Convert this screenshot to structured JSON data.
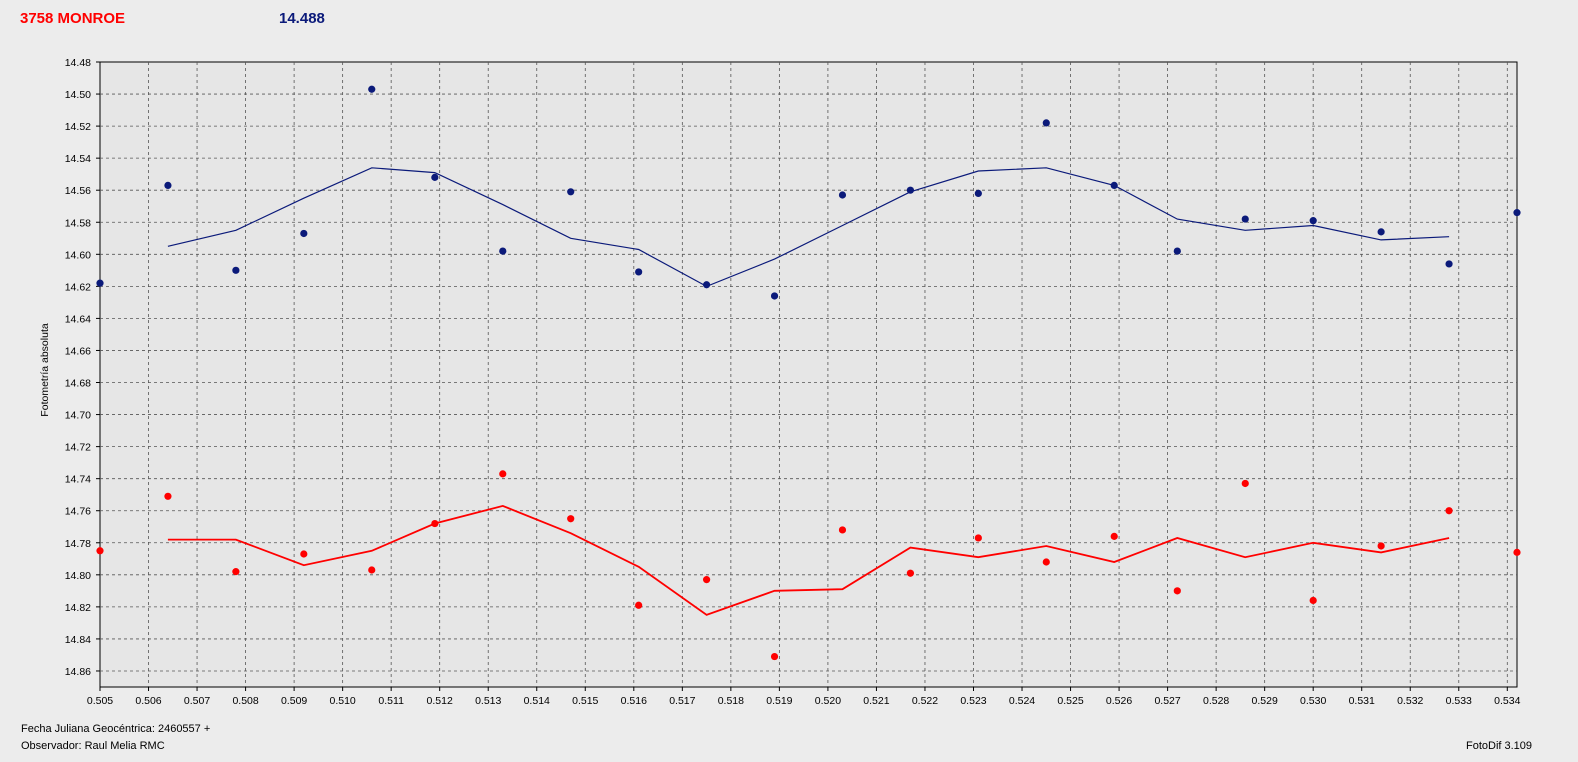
{
  "header": {
    "object_name": "3758 MONROE",
    "reference_value": "14.488"
  },
  "footer": {
    "fecha": "Fecha Juliana Geocéntrica: 2460557 +",
    "observer": "Observador: Raul Melia RMC",
    "version": "FotoDif 3.109"
  },
  "chart_data": {
    "type": "scatter",
    "title": "",
    "xlabel": "",
    "ylabel": "Fotometría absoluta",
    "xlim": [
      0.505,
      0.5342
    ],
    "ylim": [
      14.48,
      14.87
    ],
    "y_inverted": true,
    "grid": true,
    "x_ticks": [
      "0.505",
      "0.506",
      "0.507",
      "0.508",
      "0.509",
      "0.510",
      "0.511",
      "0.512",
      "0.513",
      "0.514",
      "0.515",
      "0.516",
      "0.517",
      "0.518",
      "0.519",
      "0.520",
      "0.521",
      "0.522",
      "0.523",
      "0.524",
      "0.525",
      "0.526",
      "0.527",
      "0.528",
      "0.529",
      "0.530",
      "0.531",
      "0.532",
      "0.533",
      "0.534"
    ],
    "y_ticks": [
      "14.48",
      "14.50",
      "14.52",
      "14.54",
      "14.56",
      "14.58",
      "14.60",
      "14.62",
      "14.64",
      "14.66",
      "14.68",
      "14.70",
      "14.72",
      "14.74",
      "14.76",
      "14.78",
      "14.80",
      "14.82",
      "14.84",
      "14.86"
    ],
    "x": [
      0.505,
      0.5064,
      0.5078,
      0.5092,
      0.5106,
      0.5119,
      0.5133,
      0.5147,
      0.5161,
      0.5175,
      0.5189,
      0.5203,
      0.5217,
      0.5231,
      0.5245,
      0.5259,
      0.5272,
      0.5286,
      0.53,
      0.5314,
      0.5328,
      0.5342
    ],
    "series": [
      {
        "color": "#0b1a7a",
        "values": [
          14.618,
          14.557,
          14.61,
          14.587,
          14.497,
          14.552,
          14.598,
          14.561,
          14.611,
          14.619,
          14.626,
          14.563,
          14.56,
          14.562,
          14.518,
          14.557,
          14.598,
          14.578,
          14.579,
          14.586,
          14.606,
          14.574
        ],
        "smooth_x": [
          0.5064,
          0.5078,
          0.5092,
          0.5106,
          0.5119,
          0.5133,
          0.5147,
          0.5161,
          0.5175,
          0.5189,
          0.5203,
          0.5217,
          0.5231,
          0.5245,
          0.5259,
          0.5272,
          0.5286,
          0.53,
          0.5314,
          0.5328
        ],
        "smooth": [
          14.595,
          14.585,
          14.565,
          14.546,
          14.549,
          14.569,
          14.59,
          14.597,
          14.62,
          14.603,
          14.582,
          14.561,
          14.548,
          14.546,
          14.557,
          14.578,
          14.585,
          14.582,
          14.591,
          14.589
        ]
      },
      {
        "color": "#ff0000",
        "values": [
          14.785,
          14.751,
          14.798,
          14.787,
          14.797,
          14.768,
          14.737,
          14.765,
          14.819,
          14.803,
          14.851,
          14.772,
          14.799,
          14.777,
          14.792,
          14.776,
          14.81,
          14.743,
          14.816,
          14.782,
          14.76,
          14.786
        ],
        "smooth_x": [
          0.5064,
          0.5078,
          0.5092,
          0.5106,
          0.5119,
          0.5133,
          0.5147,
          0.5161,
          0.5175,
          0.5189,
          0.5203,
          0.5217,
          0.5231,
          0.5245,
          0.5259,
          0.5272,
          0.5286,
          0.53,
          0.5314,
          0.5328
        ],
        "smooth": [
          14.778,
          14.778,
          14.794,
          14.785,
          14.768,
          14.757,
          14.774,
          14.795,
          14.825,
          14.81,
          14.809,
          14.783,
          14.789,
          14.782,
          14.792,
          14.777,
          14.789,
          14.78,
          14.786,
          14.777
        ]
      }
    ]
  }
}
